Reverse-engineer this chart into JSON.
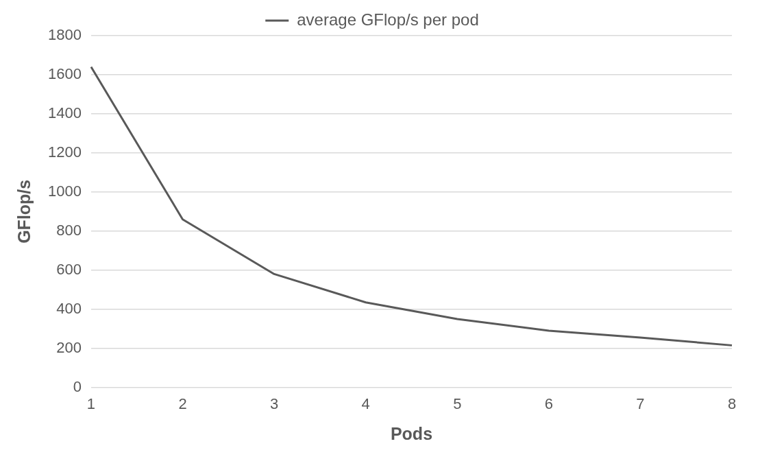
{
  "chart_data": {
    "type": "line",
    "xlabel": "Pods",
    "ylabel": "GFlop/s",
    "categories": [
      "1",
      "2",
      "3",
      "4",
      "5",
      "6",
      "7",
      "8"
    ],
    "series": [
      {
        "name": "average GFlop/s per pod",
        "color": "#595959",
        "values": [
          1640,
          860,
          580,
          435,
          350,
          290,
          255,
          215
        ]
      }
    ],
    "ylim": [
      0,
      1800
    ],
    "yticks": [
      0,
      200,
      400,
      600,
      800,
      1000,
      1200,
      1400,
      1600,
      1800
    ],
    "grid": "y",
    "legend": "top",
    "marker": "none",
    "line_style": "solid"
  }
}
